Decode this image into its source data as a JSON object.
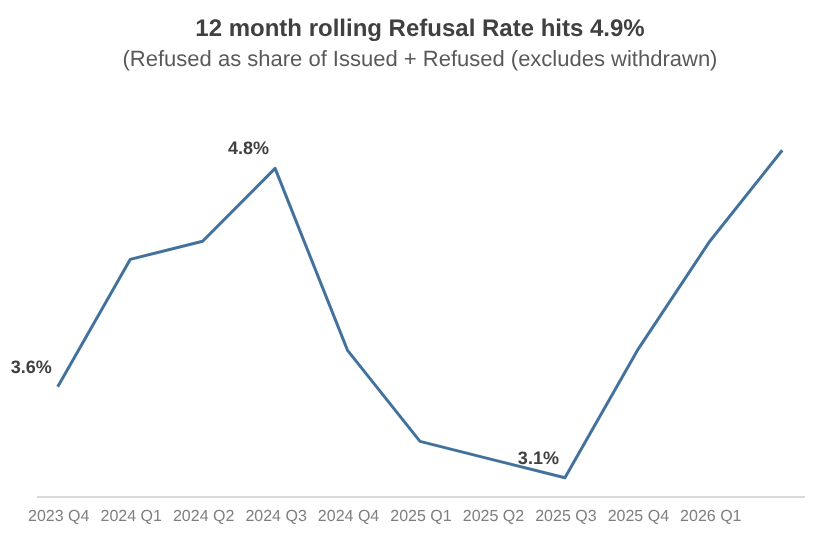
{
  "chart_data": {
    "type": "line",
    "title": "12 month rolling Refusal Rate hits 4.9%",
    "subtitle": "(Refused as share of Issued + Refused (excludes withdrawn)",
    "categories": [
      "2023 Q4",
      "2024 Q1",
      "2024 Q2",
      "2024 Q3",
      "2024 Q4",
      "2025 Q1",
      "2025 Q2",
      "2025 Q3",
      "2025 Q4",
      "2026 Q1",
      null
    ],
    "series": [
      {
        "color": "#41719c",
        "values": [
          3.6,
          4.3,
          4.4,
          4.8,
          3.8,
          3.3,
          3.2,
          3.1,
          3.8,
          4.4,
          4.9
        ],
        "value_labels": [
          "3.6%",
          null,
          null,
          "4.8%",
          null,
          null,
          null,
          "3.1%",
          null,
          null,
          null
        ]
      }
    ],
    "tick_labels": "x",
    "grid": false
  }
}
